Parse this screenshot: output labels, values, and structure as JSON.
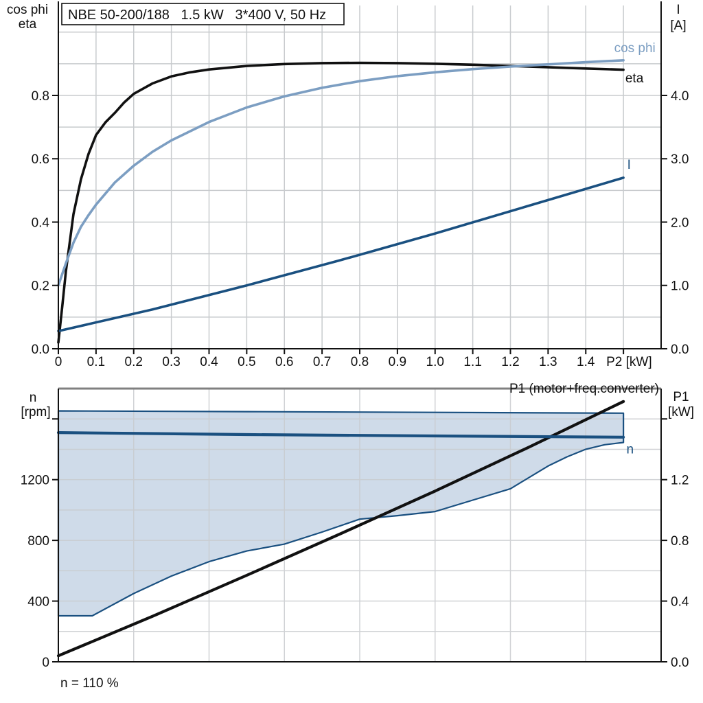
{
  "colors": {
    "black": "#111111",
    "cos_phi_blue": "#7C9EC2",
    "dark_blue": "#1A5080",
    "area_fill": "#CFDBE9",
    "grid": "#C8CBCE",
    "frame_gray": "#808080",
    "background": "#FFFFFF"
  },
  "title_box": {
    "text": "NBE 50-200/188   1.5 kW   3*400 V, 50 Hz"
  },
  "chart_data": [
    {
      "type": "line",
      "title": "Motor electrical curves: eta, cos phi and current I vs shaft power P2",
      "x_axis": {
        "unit_label": "P2 [kW]",
        "unit_label_v": 1.515,
        "range": [
          0,
          1.6
        ],
        "grid_step": 0.1,
        "ticks": [
          {
            "v": 0,
            "label": "0"
          },
          {
            "v": 0.1,
            "label": "0.1"
          },
          {
            "v": 0.2,
            "label": "0.2"
          },
          {
            "v": 0.3,
            "label": "0.3"
          },
          {
            "v": 0.4,
            "label": "0.4"
          },
          {
            "v": 0.5,
            "label": "0.5"
          },
          {
            "v": 0.6,
            "label": "0.6"
          },
          {
            "v": 0.7,
            "label": "0.7"
          },
          {
            "v": 0.8,
            "label": "0.8"
          },
          {
            "v": 0.9,
            "label": "0.9"
          },
          {
            "v": 1.0,
            "label": "1.0"
          },
          {
            "v": 1.1,
            "label": "1.1"
          },
          {
            "v": 1.2,
            "label": "1.2"
          },
          {
            "v": 1.3,
            "label": "1.3"
          },
          {
            "v": 1.4,
            "label": "1.4"
          },
          {
            "v": 1.5,
            "label": ""
          }
        ]
      },
      "left_axis": {
        "label_lines": [
          "cos phi",
          "eta"
        ],
        "range": [
          0,
          1.084
        ],
        "grid_step": 0.1,
        "ticks": [
          {
            "v": 0,
            "label": "0.0"
          },
          {
            "v": 0.2,
            "label": "0.2"
          },
          {
            "v": 0.4,
            "label": "0.4"
          },
          {
            "v": 0.6,
            "label": "0.6"
          },
          {
            "v": 0.8,
            "label": "0.8"
          }
        ]
      },
      "right_axis": {
        "label_lines": [
          "I",
          "[A]"
        ],
        "range": [
          0,
          5.42
        ],
        "ticks": [
          {
            "v": 0,
            "label": "0.0"
          },
          {
            "v": 1,
            "label": "1.0"
          },
          {
            "v": 2,
            "label": "2.0"
          },
          {
            "v": 3,
            "label": "3.0"
          },
          {
            "v": 4,
            "label": "4.0"
          }
        ]
      },
      "series": [
        {
          "name": "eta",
          "slug": "eta",
          "axis": "left",
          "color": "#111111",
          "width": 3.6,
          "label": "eta",
          "label_anchor": "start",
          "label_pos": [
            1.505,
            0.841
          ],
          "points": [
            [
              0,
              0.02
            ],
            [
              0.01,
              0.13
            ],
            [
              0.02,
              0.245
            ],
            [
              0.04,
              0.425
            ],
            [
              0.06,
              0.535
            ],
            [
              0.08,
              0.615
            ],
            [
              0.1,
              0.675
            ],
            [
              0.125,
              0.715
            ],
            [
              0.15,
              0.745
            ],
            [
              0.175,
              0.778
            ],
            [
              0.2,
              0.805
            ],
            [
              0.25,
              0.838
            ],
            [
              0.3,
              0.86
            ],
            [
              0.35,
              0.873
            ],
            [
              0.4,
              0.882
            ],
            [
              0.5,
              0.893
            ],
            [
              0.6,
              0.899
            ],
            [
              0.7,
              0.902
            ],
            [
              0.8,
              0.903
            ],
            [
              0.9,
              0.902
            ],
            [
              1.0,
              0.9
            ],
            [
              1.1,
              0.897
            ],
            [
              1.2,
              0.893
            ],
            [
              1.3,
              0.889
            ],
            [
              1.4,
              0.885
            ],
            [
              1.5,
              0.881
            ]
          ]
        },
        {
          "name": "cos phi",
          "slug": "cos-phi",
          "axis": "left",
          "color": "#7C9EC2",
          "width": 3.6,
          "label": "cos phi",
          "label_anchor": "end",
          "label_pos": [
            1.585,
            0.937
          ],
          "points": [
            [
              0,
              0.2
            ],
            [
              0.02,
              0.27
            ],
            [
              0.04,
              0.335
            ],
            [
              0.06,
              0.385
            ],
            [
              0.08,
              0.422
            ],
            [
              0.1,
              0.455
            ],
            [
              0.15,
              0.525
            ],
            [
              0.2,
              0.578
            ],
            [
              0.25,
              0.622
            ],
            [
              0.3,
              0.658
            ],
            [
              0.4,
              0.716
            ],
            [
              0.5,
              0.762
            ],
            [
              0.6,
              0.797
            ],
            [
              0.7,
              0.824
            ],
            [
              0.8,
              0.845
            ],
            [
              0.9,
              0.861
            ],
            [
              1.0,
              0.873
            ],
            [
              1.1,
              0.883
            ],
            [
              1.2,
              0.891
            ],
            [
              1.3,
              0.898
            ],
            [
              1.4,
              0.905
            ],
            [
              1.5,
              0.911
            ]
          ]
        },
        {
          "name": "I",
          "slug": "current",
          "axis": "right",
          "color": "#1A5080",
          "width": 3.6,
          "label": "I",
          "label_anchor": "start",
          "label_pos": [
            1.51,
            2.84
          ],
          "points": [
            [
              0,
              0.28
            ],
            [
              0.25,
              0.62
            ],
            [
              0.5,
              1.0
            ],
            [
              0.75,
              1.4
            ],
            [
              1.0,
              1.82
            ],
            [
              1.25,
              2.26
            ],
            [
              1.5,
              2.7
            ]
          ]
        }
      ]
    },
    {
      "type": "line+area",
      "title": "Speed range and input power P1 curves",
      "top_right_label": "P1 (motor+freq.converter)",
      "note": "n = 110 %",
      "x_axis": {
        "range": [
          0,
          1.6
        ],
        "grid_step": 0.2,
        "ticks": []
      },
      "left_axis": {
        "label_lines": [
          "n",
          "[rpm]"
        ],
        "range": [
          0,
          1800
        ],
        "grid_step": 200,
        "ticks": [
          {
            "v": 0,
            "label": "0"
          },
          {
            "v": 400,
            "label": "400"
          },
          {
            "v": 800,
            "label": "800"
          },
          {
            "v": 1200,
            "label": "1200"
          },
          {
            "v": 1600,
            "label": ""
          }
        ]
      },
      "right_axis": {
        "label_lines": [
          "P1",
          "[kW]"
        ],
        "range": [
          0,
          1.8
        ],
        "ticks": [
          {
            "v": 0,
            "label": "0.0"
          },
          {
            "v": 0.4,
            "label": "0.4"
          },
          {
            "v": 0.8,
            "label": "0.8"
          },
          {
            "v": 1.2,
            "label": "1.2"
          },
          {
            "v": 1.6,
            "label": ""
          }
        ]
      },
      "area": {
        "name": "speed-range-envelope",
        "fill": "#CFDBE9",
        "stroke": "#1A5080",
        "upper": [
          [
            0,
            1653
          ],
          [
            0.5,
            1648
          ],
          [
            1.0,
            1643
          ],
          [
            1.5,
            1638
          ]
        ],
        "lower": [
          [
            0,
            303
          ],
          [
            0.09,
            303
          ],
          [
            0.2,
            450
          ],
          [
            0.3,
            565
          ],
          [
            0.4,
            660
          ],
          [
            0.5,
            730
          ],
          [
            0.6,
            775
          ],
          [
            0.7,
            855
          ],
          [
            0.8,
            940
          ],
          [
            0.9,
            963
          ],
          [
            1.0,
            990
          ],
          [
            1.1,
            1065
          ],
          [
            1.2,
            1140
          ],
          [
            1.3,
            1290
          ],
          [
            1.35,
            1350
          ],
          [
            1.4,
            1400
          ],
          [
            1.45,
            1430
          ],
          [
            1.5,
            1445
          ]
        ]
      },
      "series": [
        {
          "name": "P1",
          "slug": "p1",
          "axis": "right",
          "color": "#111111",
          "width": 4.2,
          "label": "",
          "label_anchor": "start",
          "label_pos": [
            1.5,
            1.715
          ],
          "points": [
            [
              0,
              0.04
            ],
            [
              0.25,
              0.3
            ],
            [
              0.5,
              0.57
            ],
            [
              0.75,
              0.845
            ],
            [
              1.0,
              1.125
            ],
            [
              1.25,
              1.415
            ],
            [
              1.5,
              1.715
            ]
          ]
        },
        {
          "name": "n",
          "slug": "n-speed",
          "axis": "left",
          "color": "#1A5080",
          "width": 4.2,
          "label": "n",
          "label_anchor": "start",
          "label_pos": [
            1.508,
            1390
          ],
          "points": [
            [
              0,
              1510
            ],
            [
              0.5,
              1497
            ],
            [
              1.0,
              1488
            ],
            [
              1.5,
              1480
            ]
          ]
        }
      ]
    }
  ]
}
